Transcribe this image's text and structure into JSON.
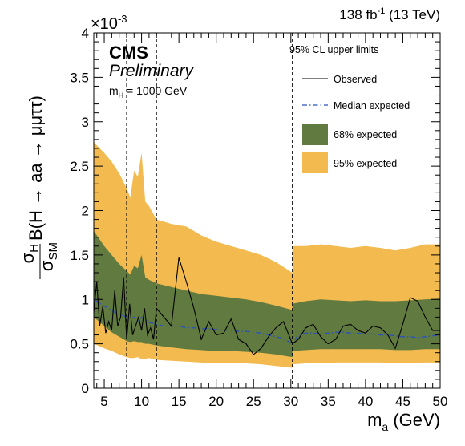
{
  "chart_data": {
    "type": "line",
    "lumi_label": "138 fb",
    "lumi_exp": "-1",
    "lumi_energy": " (13 TeV)",
    "exponent_prefix": "×10",
    "exponent_power": "-3",
    "experiment": "CMS",
    "status": "Preliminary",
    "mass_text_m": "m",
    "mass_text_sub": "H",
    "mass_text_value": " = 1000 GeV",
    "xlabel": "m",
    "xlabel_sub": "a",
    "xlabel_unit": " (GeV)",
    "ylabel_parts": {
      "sigma": "σ",
      "sub_h": "H",
      "sub_sm": "SM",
      "formula": "B(H → aa → μμττ)"
    },
    "xlim": [
      3.6,
      50
    ],
    "ylim": [
      0,
      4
    ],
    "x_ticks": [
      5,
      10,
      15,
      20,
      25,
      30,
      35,
      40,
      45,
      50
    ],
    "y_ticks": [
      0,
      0.5,
      1,
      1.5,
      2,
      2.5,
      3,
      3.5,
      4
    ],
    "y_tick_labels": [
      "0",
      "0.5",
      "1",
      "1.5",
      "2",
      "2.5",
      "3",
      "3.5",
      "4"
    ],
    "vertical_lines": [
      8,
      12,
      30.2
    ],
    "legend_title": "95% CL upper limits",
    "legend": [
      {
        "label": "Observed",
        "style": "line",
        "color": "#000000"
      },
      {
        "label": "Median expected",
        "style": "dashdot",
        "color": "#2a52be"
      },
      {
        "label": "68% expected",
        "style": "fill",
        "color": "#607a3f"
      },
      {
        "label": "95% expected",
        "style": "fill",
        "color": "#f3ba4f"
      }
    ],
    "series": [
      {
        "name": "95% expected",
        "segments": [
          {
            "x": [
              3.6,
              5,
              6,
              7,
              8,
              8.5,
              9,
              9.5,
              10,
              10.5,
              11,
              12
            ],
            "upper": [
              2.77,
              2.65,
              2.55,
              2.42,
              2.25,
              2.15,
              2.45,
              2.38,
              2.65,
              2.1,
              2.05,
              1.9
            ],
            "lower": [
              0.5,
              0.45,
              0.42,
              0.38,
              0.35,
              0.34,
              0.34,
              0.35,
              0.33,
              0.33,
              0.34,
              0.32
            ]
          },
          {
            "x": [
              12,
              14,
              16,
              18,
              20,
              22,
              24,
              26,
              28,
              30.2
            ],
            "upper": [
              1.9,
              1.85,
              1.82,
              1.72,
              1.65,
              1.6,
              1.55,
              1.5,
              1.42,
              1.3
            ],
            "lower": [
              0.32,
              0.31,
              0.3,
              0.29,
              0.28,
              0.28,
              0.28,
              0.27,
              0.25,
              0.23
            ]
          },
          {
            "x": [
              30.2,
              32,
              34,
              36,
              38,
              40,
              42,
              44,
              46,
              48,
              50
            ],
            "upper": [
              1.6,
              1.6,
              1.62,
              1.6,
              1.58,
              1.6,
              1.58,
              1.55,
              1.58,
              1.62,
              1.62
            ],
            "lower": [
              0.27,
              0.28,
              0.28,
              0.29,
              0.29,
              0.29,
              0.29,
              0.28,
              0.28,
              0.29,
              0.29
            ]
          }
        ]
      },
      {
        "name": "68% expected",
        "segments": [
          {
            "x": [
              3.6,
              5,
              6,
              7,
              8,
              8.5,
              9,
              9.5,
              10,
              10.5,
              11,
              12
            ],
            "upper": [
              1.77,
              1.6,
              1.5,
              1.4,
              1.32,
              1.28,
              1.38,
              1.35,
              1.5,
              1.25,
              1.22,
              1.18
            ],
            "lower": [
              0.8,
              0.7,
              0.63,
              0.58,
              0.53,
              0.52,
              0.53,
              0.52,
              0.52,
              0.5,
              0.5,
              0.48
            ]
          },
          {
            "x": [
              12,
              14,
              16,
              18,
              20,
              22,
              24,
              26,
              28,
              30.2
            ],
            "upper": [
              1.18,
              1.14,
              1.1,
              1.06,
              1.04,
              1.02,
              1.0,
              0.97,
              0.93,
              0.88
            ],
            "lower": [
              0.48,
              0.46,
              0.44,
              0.43,
              0.42,
              0.42,
              0.41,
              0.4,
              0.38,
              0.35
            ]
          },
          {
            "x": [
              30.2,
              32,
              34,
              36,
              38,
              40,
              42,
              44,
              46,
              48,
              50
            ],
            "upper": [
              0.95,
              0.98,
              1.0,
              0.99,
              0.98,
              0.99,
              0.98,
              0.98,
              0.99,
              1.0,
              1.01
            ],
            "lower": [
              0.42,
              0.43,
              0.44,
              0.44,
              0.44,
              0.44,
              0.44,
              0.43,
              0.43,
              0.44,
              0.44
            ]
          }
        ]
      },
      {
        "name": "Median expected",
        "x": [
          3.6,
          4.5,
          5.5,
          6.5,
          7.5,
          8,
          8.5,
          9,
          9.5,
          10,
          11,
          12,
          13,
          14,
          15,
          16,
          17,
          18,
          19,
          20,
          21,
          22,
          23,
          24,
          25,
          26,
          27,
          28,
          29,
          30.2,
          31,
          32,
          33,
          34,
          35,
          36,
          37,
          38,
          39,
          40,
          41,
          42,
          43,
          44,
          45,
          46,
          47,
          48,
          49,
          50
        ],
        "y": [
          1.0,
          0.95,
          0.9,
          0.85,
          0.82,
          0.8,
          0.78,
          0.8,
          0.76,
          0.8,
          0.74,
          0.72,
          0.7,
          0.7,
          0.7,
          0.68,
          0.68,
          0.67,
          0.67,
          0.66,
          0.65,
          0.66,
          0.64,
          0.64,
          0.63,
          0.62,
          0.6,
          0.58,
          0.56,
          0.5,
          0.6,
          0.62,
          0.62,
          0.61,
          0.62,
          0.63,
          0.63,
          0.62,
          0.62,
          0.61,
          0.61,
          0.6,
          0.6,
          0.59,
          0.58,
          0.58,
          0.57,
          0.58,
          0.59,
          0.6
        ]
      },
      {
        "name": "Observed",
        "x": [
          3.6,
          4,
          4.4,
          4.8,
          5.2,
          5.6,
          6,
          6.4,
          6.8,
          7.2,
          7.6,
          8.0,
          8.4,
          8.8,
          9.2,
          9.6,
          10.0,
          10.4,
          10.8,
          11.2,
          11.6,
          12,
          13,
          14,
          15,
          16,
          17,
          18,
          19,
          20,
          21,
          22,
          23,
          24,
          25,
          26,
          27,
          28,
          29,
          30.2,
          31,
          32,
          33,
          34,
          35,
          36,
          37,
          38,
          39,
          40,
          41,
          42,
          43,
          44,
          45,
          46,
          47,
          48,
          49,
          50
        ],
        "y": [
          0.85,
          1.2,
          0.7,
          0.92,
          0.62,
          0.75,
          0.65,
          1.1,
          0.7,
          0.8,
          1.25,
          0.55,
          0.95,
          0.6,
          0.7,
          0.8,
          0.65,
          0.9,
          0.6,
          0.68,
          0.55,
          0.9,
          0.8,
          0.7,
          1.47,
          1.2,
          0.9,
          0.55,
          0.75,
          0.6,
          0.62,
          0.78,
          0.55,
          0.5,
          0.38,
          0.45,
          0.58,
          0.68,
          0.75,
          0.5,
          0.55,
          0.68,
          0.72,
          0.58,
          0.5,
          0.55,
          0.7,
          0.72,
          0.65,
          0.62,
          0.7,
          0.68,
          0.6,
          0.45,
          0.72,
          1.02,
          0.98,
          0.8,
          0.65,
          0.65
        ]
      }
    ]
  }
}
